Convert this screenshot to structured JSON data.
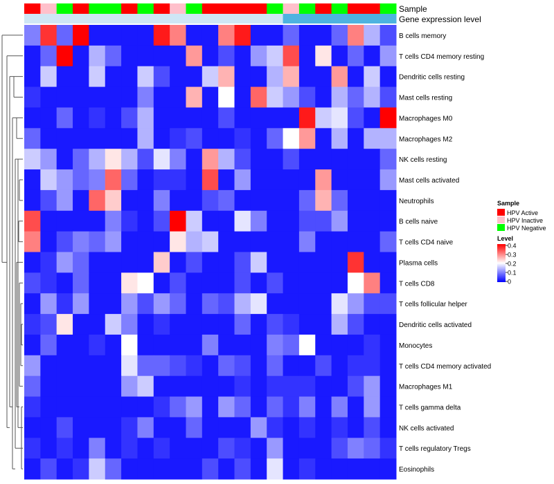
{
  "chart_data": {
    "type": "heatmap",
    "annotation_labels": {
      "sample": "Sample",
      "expression": "Gene expression level"
    },
    "columns": [
      "HPV Active",
      "HPV Inactive",
      "HPV Negative",
      "HPV Active",
      "HPV Negative",
      "HPV Negative",
      "HPV Active",
      "HPV Negative",
      "HPV Active",
      "HPV Inactive",
      "HPV Negative",
      "HPV Active",
      "HPV Active",
      "HPV Active",
      "HPV Active",
      "HPV Negative",
      "HPV Inactive",
      "HPV Negative",
      "HPV Active",
      "HPV Negative",
      "HPV Active",
      "HPV Active",
      "HPV Negative"
    ],
    "rows": [
      "B cells memory",
      "T cells CD4 memory resting",
      "Dendritic cells resting",
      "Mast cells resting",
      "Macrophages M0",
      "Macrophages M2",
      "NK cells resting",
      "Mast cells activated",
      "Neutrophils",
      "B cells naive",
      "T cells CD4 naive",
      "Plasma cells",
      "T cells CD8",
      "T cells follicular helper",
      "Dendritic cells activated",
      "Monocytes",
      "T cells CD4 memory activated",
      "Macrophages M1",
      "T cells gamma delta",
      "NK cells activated",
      "T cells regulatory  Tregs",
      "Eosinophils"
    ],
    "values": [
      [
        0.1,
        0.36,
        0.08,
        0.4,
        0.02,
        0.02,
        0.02,
        0.02,
        0.38,
        0.3,
        0.02,
        0.02,
        0.3,
        0.38,
        0.02,
        0.02,
        0.08,
        0.02,
        0.02,
        0.08,
        0.3,
        0.14,
        0.06
      ],
      [
        0.02,
        0.08,
        0.4,
        0.02,
        0.14,
        0.08,
        0.02,
        0.02,
        0.02,
        0.02,
        0.28,
        0.02,
        0.06,
        0.02,
        0.12,
        0.16,
        0.34,
        0.02,
        0.22,
        0.02,
        0.08,
        0.02,
        0.12
      ],
      [
        0.02,
        0.16,
        0.02,
        0.02,
        0.16,
        0.02,
        0.02,
        0.16,
        0.06,
        0.02,
        0.02,
        0.16,
        0.26,
        0.02,
        0.02,
        0.14,
        0.26,
        0.02,
        0.02,
        0.28,
        0.02,
        0.16,
        0.02
      ],
      [
        0.04,
        0.02,
        0.02,
        0.02,
        0.02,
        0.02,
        0.02,
        0.1,
        0.02,
        0.02,
        0.26,
        0.02,
        0.2,
        0.02,
        0.32,
        0.16,
        0.12,
        0.06,
        0.02,
        0.14,
        0.08,
        0.14,
        0.06
      ],
      [
        0.02,
        0.02,
        0.08,
        0.02,
        0.04,
        0.02,
        0.06,
        0.14,
        0.02,
        0.02,
        0.02,
        0.02,
        0.06,
        0.02,
        0.02,
        0.02,
        0.02,
        0.38,
        0.16,
        0.18,
        0.06,
        0.02,
        0.4
      ],
      [
        0.08,
        0.02,
        0.02,
        0.02,
        0.02,
        0.02,
        0.02,
        0.14,
        0.02,
        0.04,
        0.06,
        0.02,
        0.02,
        0.04,
        0.02,
        0.08,
        0.2,
        0.28,
        0.02,
        0.14,
        0.02,
        0.14,
        0.14
      ],
      [
        0.16,
        0.12,
        0.02,
        0.08,
        0.14,
        0.22,
        0.14,
        0.06,
        0.18,
        0.1,
        0.02,
        0.28,
        0.14,
        0.06,
        0.02,
        0.02,
        0.06,
        0.02,
        0.02,
        0.02,
        0.02,
        0.02,
        0.08
      ],
      [
        0.02,
        0.16,
        0.12,
        0.08,
        0.1,
        0.32,
        0.08,
        0.02,
        0.04,
        0.04,
        0.02,
        0.34,
        0.02,
        0.12,
        0.02,
        0.02,
        0.02,
        0.02,
        0.28,
        0.02,
        0.02,
        0.02,
        0.12
      ],
      [
        0.02,
        0.06,
        0.12,
        0.02,
        0.32,
        0.24,
        0.02,
        0.02,
        0.1,
        0.02,
        0.02,
        0.06,
        0.08,
        0.02,
        0.02,
        0.02,
        0.02,
        0.08,
        0.26,
        0.08,
        0.02,
        0.02,
        0.02
      ],
      [
        0.34,
        0.02,
        0.02,
        0.02,
        0.02,
        0.1,
        0.04,
        0.02,
        0.06,
        0.4,
        0.16,
        0.02,
        0.02,
        0.18,
        0.1,
        0.02,
        0.02,
        0.06,
        0.06,
        0.12,
        0.02,
        0.02,
        0.02
      ],
      [
        0.3,
        0.02,
        0.06,
        0.1,
        0.08,
        0.12,
        0.02,
        0.02,
        0.02,
        0.22,
        0.14,
        0.16,
        0.02,
        0.02,
        0.02,
        0.02,
        0.02,
        0.1,
        0.02,
        0.02,
        0.02,
        0.02,
        0.08
      ],
      [
        0.02,
        0.04,
        0.12,
        0.08,
        0.02,
        0.02,
        0.02,
        0.02,
        0.24,
        0.02,
        0.06,
        0.02,
        0.02,
        0.06,
        0.16,
        0.02,
        0.02,
        0.02,
        0.02,
        0.02,
        0.36,
        0.02,
        0.02
      ],
      [
        0.06,
        0.04,
        0.02,
        0.08,
        0.02,
        0.02,
        0.22,
        0.2,
        0.02,
        0.06,
        0.02,
        0.02,
        0.02,
        0.06,
        0.02,
        0.06,
        0.02,
        0.02,
        0.02,
        0.02,
        0.2,
        0.3,
        0.02
      ],
      [
        0.02,
        0.12,
        0.04,
        0.12,
        0.02,
        0.02,
        0.12,
        0.06,
        0.12,
        0.08,
        0.02,
        0.08,
        0.06,
        0.14,
        0.18,
        0.02,
        0.02,
        0.02,
        0.02,
        0.18,
        0.12,
        0.06,
        0.06
      ],
      [
        0.04,
        0.06,
        0.22,
        0.02,
        0.02,
        0.16,
        0.1,
        0.02,
        0.04,
        0.02,
        0.02,
        0.02,
        0.02,
        0.08,
        0.02,
        0.06,
        0.04,
        0.02,
        0.02,
        0.14,
        0.06,
        0.02,
        0.02
      ],
      [
        0.02,
        0.08,
        0.02,
        0.02,
        0.04,
        0.02,
        0.2,
        0.02,
        0.02,
        0.02,
        0.02,
        0.1,
        0.02,
        0.02,
        0.02,
        0.1,
        0.08,
        0.2,
        0.02,
        0.02,
        0.02,
        0.04,
        0.02
      ],
      [
        0.12,
        0.02,
        0.02,
        0.02,
        0.02,
        0.02,
        0.18,
        0.08,
        0.08,
        0.06,
        0.04,
        0.02,
        0.08,
        0.06,
        0.02,
        0.08,
        0.02,
        0.02,
        0.06,
        0.02,
        0.04,
        0.04,
        0.02
      ],
      [
        0.08,
        0.02,
        0.02,
        0.02,
        0.02,
        0.02,
        0.12,
        0.16,
        0.02,
        0.02,
        0.02,
        0.02,
        0.02,
        0.04,
        0.02,
        0.04,
        0.04,
        0.04,
        0.02,
        0.02,
        0.06,
        0.12,
        0.02
      ],
      [
        0.04,
        0.02,
        0.02,
        0.02,
        0.02,
        0.02,
        0.02,
        0.02,
        0.04,
        0.08,
        0.12,
        0.02,
        0.12,
        0.08,
        0.02,
        0.08,
        0.04,
        0.1,
        0.02,
        0.1,
        0.02,
        0.12,
        0.02
      ],
      [
        0.02,
        0.02,
        0.06,
        0.02,
        0.02,
        0.02,
        0.04,
        0.1,
        0.02,
        0.02,
        0.08,
        0.02,
        0.02,
        0.02,
        0.12,
        0.04,
        0.02,
        0.04,
        0.02,
        0.04,
        0.02,
        0.06,
        0.02
      ],
      [
        0.04,
        0.02,
        0.04,
        0.02,
        0.1,
        0.02,
        0.04,
        0.02,
        0.04,
        0.02,
        0.02,
        0.02,
        0.06,
        0.04,
        0.02,
        0.12,
        0.02,
        0.02,
        0.02,
        0.06,
        0.1,
        0.08,
        0.04
      ],
      [
        0.02,
        0.06,
        0.02,
        0.04,
        0.16,
        0.08,
        0.02,
        0.02,
        0.02,
        0.02,
        0.02,
        0.06,
        0.02,
        0.06,
        0.02,
        0.18,
        0.02,
        0.04,
        0.02,
        0.02,
        0.02,
        0.02,
        0.02
      ]
    ],
    "legend": {
      "sample_title": "Sample",
      "sample_items": [
        {
          "label": "HPV Active",
          "color": "#ff0000"
        },
        {
          "label": "HPV Inactive",
          "color": "#ffc0cb"
        },
        {
          "label": "HPV Negative",
          "color": "#00ff00"
        }
      ],
      "level_title": "Level",
      "level_ticks": [
        "0.4",
        "0.3",
        "0.2",
        "0.1",
        "0"
      ],
      "level_range": [
        0,
        0.4
      ]
    },
    "colors": {
      "low": "#0000ff",
      "mid": "#ffffff",
      "high": "#ff0000",
      "expression_bar": "#4eb3e0"
    }
  }
}
